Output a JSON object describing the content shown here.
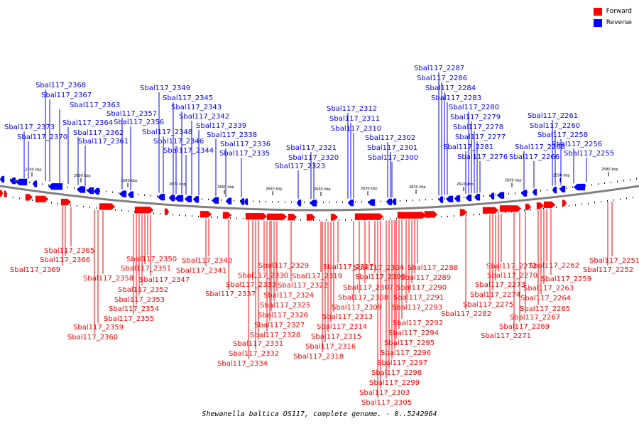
{
  "legend": {
    "forward": {
      "label": "Forward",
      "color": "#ff0000"
    },
    "reverse": {
      "label": "Reverse",
      "color": "#0000ff"
    }
  },
  "caption": "Shewanella baltica OS117, complete genome. - 0..5242964",
  "axis": {
    "units": "kbp",
    "ticks": [
      "2700 kbp",
      "2690 kbp",
      "2680 kbp",
      "2670 kbp",
      "2660 kbp",
      "2650 kbp",
      "2640 kbp",
      "2630 kbp",
      "2620 kbp",
      "2610 kbp",
      "2600 kbp",
      "2590 kbp",
      "2580 kbp"
    ]
  },
  "genes": {
    "reverse": [
      "Sbal117_2373",
      "Sbal117_2370",
      "Sbal117_2368",
      "Sbal117_2367",
      "Sbal117_2363",
      "Sbal117_2364",
      "Sbal117_2362",
      "Sbal117_2361",
      "Sbal117_2357",
      "Sbal117_2356",
      "Sbal117_2349",
      "Sbal117_2348",
      "Sbal117_2345",
      "Sbal117_2346",
      "Sbal117_2343",
      "Sbal117_2344",
      "Sbal117_2342",
      "Sbal117_2339",
      "Sbal117_2338",
      "Sbal117_2336",
      "Sbal117_2335",
      "Sbal117_2323",
      "Sbal117_2321",
      "Sbal117_2320",
      "Sbal117_2312",
      "Sbal117_2311",
      "Sbal117_2310",
      "Sbal117_2302",
      "Sbal117_2301",
      "Sbal117_2300",
      "Sbal117_2287",
      "Sbal117_2286",
      "Sbal117_2284",
      "Sbal117_2283",
      "Sbal117_2281",
      "Sbal117_2280",
      "Sbal117_2279",
      "Sbal117_2278",
      "Sbal117_2277",
      "Sbal117_2276",
      "Sbal117_2268",
      "Sbal117_2266",
      "Sbal117_2261",
      "Sbal117_2260",
      "Sbal117_2258",
      "Sbal117_2256",
      "Sbal117_2255"
    ],
    "forward": [
      "Sbal117_2365",
      "Sbal117_2366",
      "Sbal117_2369",
      "Sbal117_2358",
      "Sbal117_2359",
      "Sbal117_2360",
      "Sbal117_2350",
      "Sbal117_2351",
      "Sbal117_2347",
      "Sbal117_2352",
      "Sbal117_2353",
      "Sbal117_2354",
      "Sbal117_2355",
      "Sbal117_2340",
      "Sbal117_2341",
      "Sbal117_2337",
      "Sbal117_2329",
      "Sbal117_2330",
      "Sbal117_2333",
      "Sbal117_2324",
      "Sbal117_2325",
      "Sbal117_2326",
      "Sbal117_2327",
      "Sbal117_2328",
      "Sbal117_2331",
      "Sbal117_2332",
      "Sbal117_2334",
      "Sbal117_2322",
      "Sbal117_2317",
      "Sbal117_2319",
      "Sbal117_2313",
      "Sbal117_2314",
      "Sbal117_2315",
      "Sbal117_2316",
      "Sbal117_2318",
      "Sbal117_2307",
      "Sbal117_2308",
      "Sbal117_2309",
      "Sbal117_2304",
      "Sbal117_2306",
      "Sbal117_2288",
      "Sbal117_2289",
      "Sbal117_2290",
      "Sbal117_2291",
      "Sbal117_2293",
      "Sbal117_2292",
      "Sbal117_2294",
      "Sbal117_2295",
      "Sbal117_2296",
      "Sbal117_2297",
      "Sbal117_2298",
      "Sbal117_2299",
      "Sbal117_2303",
      "Sbal117_2305",
      "Sbal117_2272",
      "Sbal117_2270",
      "Sbal117_2273",
      "Sbal117_2274",
      "Sbal117_2275",
      "Sbal117_2282",
      "Sbal117_2262",
      "Sbal117_2259",
      "Sbal117_2263",
      "Sbal117_2264",
      "Sbal117_2265",
      "Sbal117_2267",
      "Sbal117_2269",
      "Sbal117_2271",
      "Sbal117_2251",
      "Sbal117_2252"
    ]
  }
}
